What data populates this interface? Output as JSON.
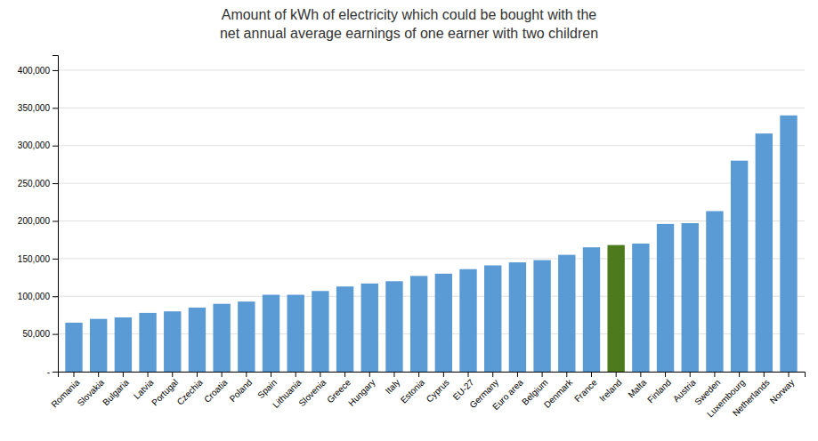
{
  "chart_data": {
    "type": "bar",
    "title": "Amount of kWh of electricity which could be bought with the",
    "subtitle": "net annual average earnings of one earner with two children",
    "categories": [
      "Romania",
      "Slovakia",
      "Bulgaria",
      "Latvia",
      "Portugal",
      "Czechia",
      "Croatia",
      "Poland",
      "Spain",
      "Lithuania",
      "Slovenia",
      "Greece",
      "Hungary",
      "Italy",
      "Estonia",
      "Cyprus",
      "EU-27",
      "Germany",
      "Euro area",
      "Belgium",
      "Denmark",
      "France",
      "Ireland",
      "Malta",
      "Finland",
      "Austria",
      "Sweden",
      "Luxembourg",
      "Netherlands",
      "Norway"
    ],
    "values": [
      65000,
      70000,
      72000,
      78000,
      80000,
      85000,
      90000,
      93000,
      102000,
      102000,
      107000,
      113000,
      117000,
      120000,
      127000,
      130000,
      136000,
      141000,
      145000,
      148000,
      155000,
      165000,
      168000,
      170000,
      196000,
      197000,
      213000,
      280000,
      316000,
      340000
    ],
    "colors": [
      "#5B9BD5",
      "#5B9BD5",
      "#5B9BD5",
      "#5B9BD5",
      "#5B9BD5",
      "#5B9BD5",
      "#5B9BD5",
      "#5B9BD5",
      "#5B9BD5",
      "#5B9BD5",
      "#5B9BD5",
      "#5B9BD5",
      "#5B9BD5",
      "#5B9BD5",
      "#5B9BD5",
      "#5B9BD5",
      "#5B9BD5",
      "#5B9BD5",
      "#5B9BD5",
      "#5B9BD5",
      "#5B9BD5",
      "#5B9BD5",
      "#4E7A1E",
      "#5B9BD5",
      "#5B9BD5",
      "#5B9BD5",
      "#5B9BD5",
      "#5B9BD5",
      "#5B9BD5",
      "#5B9BD5"
    ],
    "ylim": [
      0,
      420000
    ],
    "yticks": [
      {
        "value": 0,
        "label": "-"
      },
      {
        "value": 50000,
        "label": "50,000"
      },
      {
        "value": 100000,
        "label": "100,000"
      },
      {
        "value": 150000,
        "label": "150,000"
      },
      {
        "value": 200000,
        "label": "200,000"
      },
      {
        "value": 250000,
        "label": "250,000"
      },
      {
        "value": 300000,
        "label": "300,000"
      },
      {
        "value": 350000,
        "label": "350,000"
      },
      {
        "value": 400000,
        "label": "400,000"
      }
    ],
    "grid": true
  }
}
